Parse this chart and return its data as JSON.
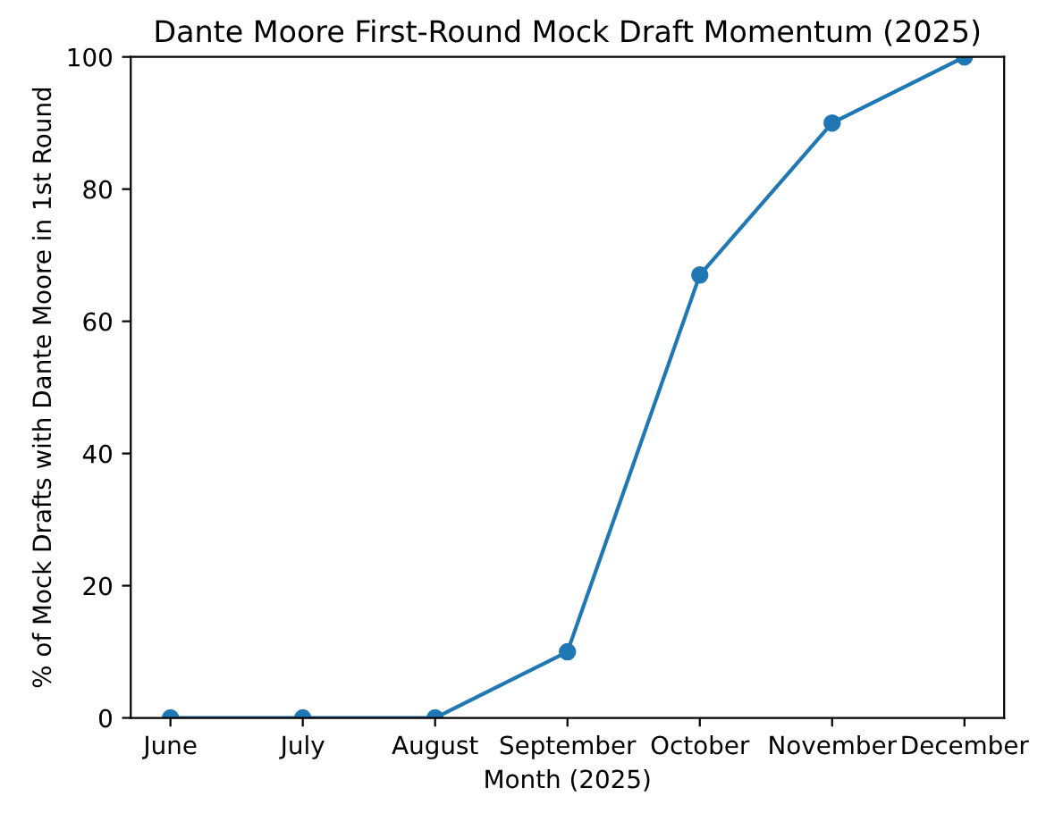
{
  "chart_data": {
    "type": "line",
    "title": "Dante Moore First-Round Mock Draft Momentum (2025)",
    "xlabel": "Month (2025)",
    "ylabel": "% of Mock Drafts with Dante Moore in 1st Round",
    "categories": [
      "June",
      "July",
      "August",
      "September",
      "October",
      "November",
      "December"
    ],
    "series": [
      {
        "color": "#1f77b4",
        "values": [
          0,
          0,
          0,
          10,
          67,
          90,
          100
        ]
      }
    ],
    "ylim": [
      0,
      100
    ],
    "yticks": [
      0,
      20,
      40,
      60,
      80,
      100
    ],
    "marker": "circle",
    "line_style": "solid",
    "grid": false,
    "legend": false
  }
}
